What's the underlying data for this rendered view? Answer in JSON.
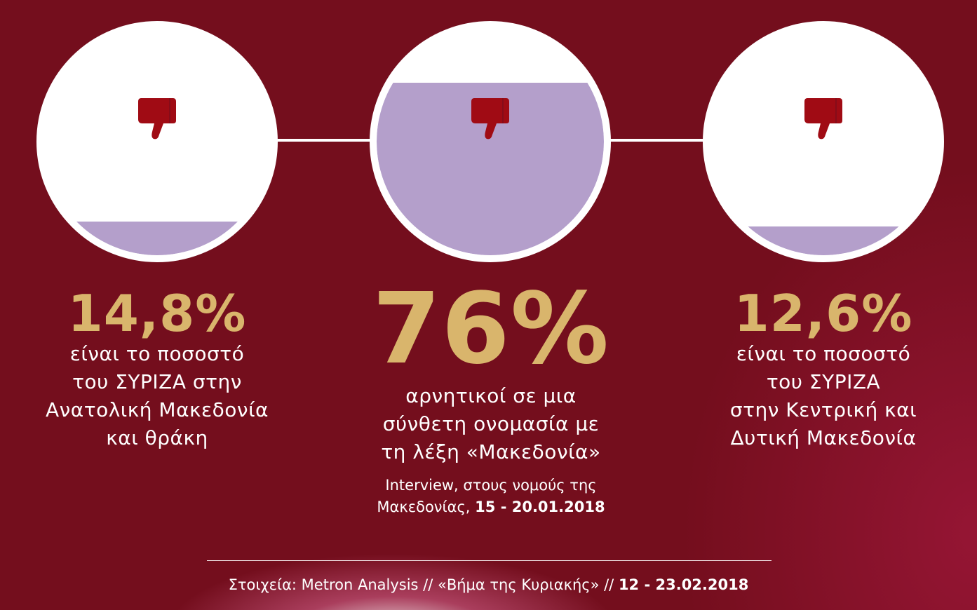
{
  "colors": {
    "background": "#740e1d",
    "fill": "#b49fcb",
    "accent_text": "#d9b56c",
    "thumb": "#a00b14"
  },
  "icons": [
    "thumbs-down-icon"
  ],
  "chart_data": {
    "type": "percentage-fill",
    "series": [
      {
        "value": 14.8,
        "label": "14,8%",
        "description": [
          "είναι το ποσοστό",
          "του ΣΥΡΙΖΑ στην",
          "Ανατολική Μακεδονία",
          "και θράκη"
        ]
      },
      {
        "value": 76,
        "label": "76%",
        "description": [
          "αρνητικοί σε μια",
          "σύνθετη ονομασία με",
          "τη λέξη «Μακεδονία»"
        ],
        "source_text": "Interview, στους νομούς της",
        "source_text_2": "Μακεδονίας, ",
        "source_date": "15 - 20.01.2018"
      },
      {
        "value": 12.6,
        "label": "12,6%",
        "description": [
          "είναι το ποσοστό",
          "του ΣΥΡΙΖΑ",
          "στην Κεντρική και",
          "Δυτική Μακεδονία"
        ]
      }
    ]
  },
  "footer": {
    "text": "Στοιχεία: Metron Analysis // «Βήμα της Κυριακής» // ",
    "date": "12 - 23.02.2018"
  }
}
